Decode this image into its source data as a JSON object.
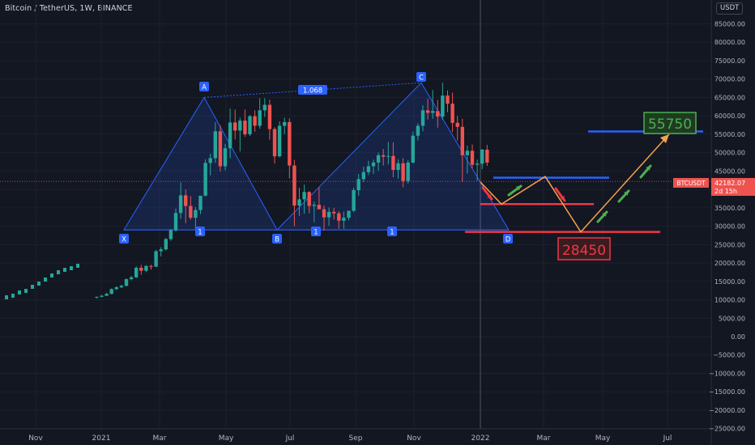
{
  "header": {
    "title": "Bitcoin / TetherUS, 1W, BINANCE",
    "currency": "USDT"
  },
  "chart_data": {
    "type": "candlestick",
    "x_ticks": [
      "Nov",
      "2021",
      "Mar",
      "May",
      "Jul",
      "Sep",
      "Nov",
      "2022",
      "Mar",
      "May",
      "Jul"
    ],
    "y_ticks": [
      85000,
      80000,
      75000,
      70000,
      65000,
      60000,
      55000,
      50000,
      45000,
      40000,
      35000,
      30000,
      25000,
      20000,
      15000,
      10000,
      5000,
      0,
      -5000,
      -10000,
      -15000,
      -20000,
      -25000
    ],
    "y_tick_labels": [
      "85000.00",
      "80000.00",
      "75000.00",
      "70000.00",
      "65000.00",
      "60000.00",
      "55000.00",
      "50000.00",
      "45000.00",
      "40000.00",
      "35000.00",
      "30000.00",
      "25000.00",
      "20000.00",
      "15000.00",
      "10000.00",
      "5000.00",
      "0.00",
      "−5000.00",
      "−10000.00",
      "−15000.00",
      "−20000.00",
      "−25000.00"
    ],
    "ylim": [
      -25000,
      85000
    ],
    "candles": [
      [
        10600,
        10900,
        10400,
        10800
      ],
      [
        10800,
        11300,
        10700,
        11100
      ],
      [
        11100,
        11900,
        11000,
        11600
      ],
      [
        11600,
        13100,
        11500,
        12900
      ],
      [
        12900,
        13700,
        12600,
        13400
      ],
      [
        13400,
        14100,
        13200,
        13800
      ],
      [
        13800,
        15800,
        13600,
        15600
      ],
      [
        15600,
        16500,
        15300,
        16100
      ],
      [
        16100,
        19100,
        15900,
        18700
      ],
      [
        18700,
        19500,
        16800,
        17900
      ],
      [
        17900,
        19400,
        17500,
        19200
      ],
      [
        19200,
        19500,
        18200,
        19000
      ],
      [
        19000,
        23600,
        18900,
        23200
      ],
      [
        23200,
        24300,
        21800,
        23700
      ],
      [
        23700,
        26800,
        23400,
        26500
      ],
      [
        26500,
        29300,
        26000,
        28900
      ],
      [
        28900,
        34800,
        28500,
        33600
      ],
      [
        33600,
        41900,
        32000,
        38400
      ],
      [
        38400,
        40000,
        30800,
        35500
      ],
      [
        35500,
        38200,
        31800,
        32300
      ],
      [
        32300,
        35200,
        29200,
        34400
      ],
      [
        34400,
        38000,
        33300,
        38300
      ],
      [
        38300,
        48200,
        38100,
        47200
      ],
      [
        47200,
        49700,
        43800,
        48500
      ],
      [
        48500,
        58300,
        47200,
        55800
      ],
      [
        55800,
        57500,
        44900,
        46300
      ],
      [
        46300,
        52400,
        45200,
        51200
      ],
      [
        51200,
        62000,
        48500,
        58200
      ],
      [
        58200,
        61700,
        53600,
        56000
      ],
      [
        56000,
        59500,
        50300,
        58700
      ],
      [
        58700,
        61700,
        54300,
        55000
      ],
      [
        55000,
        60200,
        54500,
        59900
      ],
      [
        59900,
        61500,
        55700,
        57300
      ],
      [
        57300,
        64800,
        56500,
        61500
      ],
      [
        61500,
        64800,
        59700,
        63000
      ],
      [
        63000,
        64400,
        53500,
        56400
      ],
      [
        56400,
        56900,
        47000,
        49000
      ],
      [
        49000,
        58500,
        48700,
        57300
      ],
      [
        57300,
        59500,
        55000,
        58300
      ],
      [
        58300,
        59300,
        43000,
        46500
      ],
      [
        46500,
        48000,
        30000,
        35600
      ],
      [
        35600,
        40500,
        32800,
        37300
      ],
      [
        37300,
        41300,
        33400,
        39300
      ],
      [
        39300,
        39500,
        33500,
        35500
      ],
      [
        35500,
        36700,
        31100,
        35800
      ],
      [
        35800,
        40500,
        34700,
        34600
      ],
      [
        34600,
        35600,
        28800,
        32400
      ],
      [
        32400,
        35100,
        30100,
        33900
      ],
      [
        33900,
        35000,
        31800,
        33500
      ],
      [
        33500,
        34100,
        29300,
        31500
      ],
      [
        31500,
        34000,
        29300,
        32300
      ],
      [
        32300,
        34200,
        31600,
        34200
      ],
      [
        34200,
        40500,
        33800,
        39800
      ],
      [
        39800,
        44200,
        38300,
        42800
      ],
      [
        42800,
        46200,
        42000,
        44700
      ],
      [
        44700,
        47800,
        43900,
        46300
      ],
      [
        46300,
        48100,
        44200,
        47300
      ],
      [
        47300,
        50000,
        45000,
        49300
      ],
      [
        49300,
        51000,
        46500,
        48900
      ],
      [
        48900,
        52900,
        46800,
        49100
      ],
      [
        49100,
        52800,
        43300,
        45300
      ],
      [
        45300,
        48200,
        42900,
        47100
      ],
      [
        47100,
        48500,
        40600,
        42300
      ],
      [
        42300,
        48000,
        41600,
        47300
      ],
      [
        47300,
        55700,
        47100,
        54600
      ],
      [
        54600,
        58000,
        53300,
        57300
      ],
      [
        57300,
        62900,
        55800,
        61500
      ],
      [
        61500,
        64600,
        59000,
        60800
      ],
      [
        60800,
        67000,
        59200,
        61300
      ],
      [
        61300,
        64300,
        56800,
        59800
      ],
      [
        59800,
        69000,
        58900,
        65500
      ],
      [
        65500,
        66900,
        61000,
        63300
      ],
      [
        63300,
        66300,
        55600,
        58100
      ],
      [
        58100,
        60000,
        53300,
        57000
      ],
      [
        57000,
        59200,
        42000,
        49300
      ],
      [
        49300,
        51900,
        44300,
        50500
      ],
      [
        50500,
        52200,
        45700,
        46700
      ],
      [
        46700,
        48100,
        42300,
        47000
      ],
      [
        47000,
        51000,
        45500,
        50800
      ],
      [
        50800,
        52100,
        46400,
        47300
      ]
    ],
    "pattern_points": {
      "X": 29000,
      "A": 65000,
      "B": 29000,
      "C": 69000,
      "D": 29000
    },
    "pattern_labels": [
      "X",
      "A",
      "B",
      "C",
      "D"
    ],
    "pattern_ratio_label": "1.068",
    "pattern_marker_labels": [
      "1",
      "1",
      "1"
    ],
    "last_price_label": "BTCUSDT",
    "last_price": "42182.07",
    "countdown": "2d 15h",
    "target_high": "55750",
    "target_low": "28450",
    "levels": {
      "blue_upper": 55750,
      "blue_mid": 43200,
      "red_mid": 36000,
      "red_low": 28450
    },
    "colors": {
      "bg": "#131722",
      "up": "#26a69a",
      "down": "#ef5350",
      "pattern": "#2962ff",
      "projection": "#f5a14a",
      "green_arrow": "#4caf50",
      "red_arrow": "#f23645"
    }
  }
}
